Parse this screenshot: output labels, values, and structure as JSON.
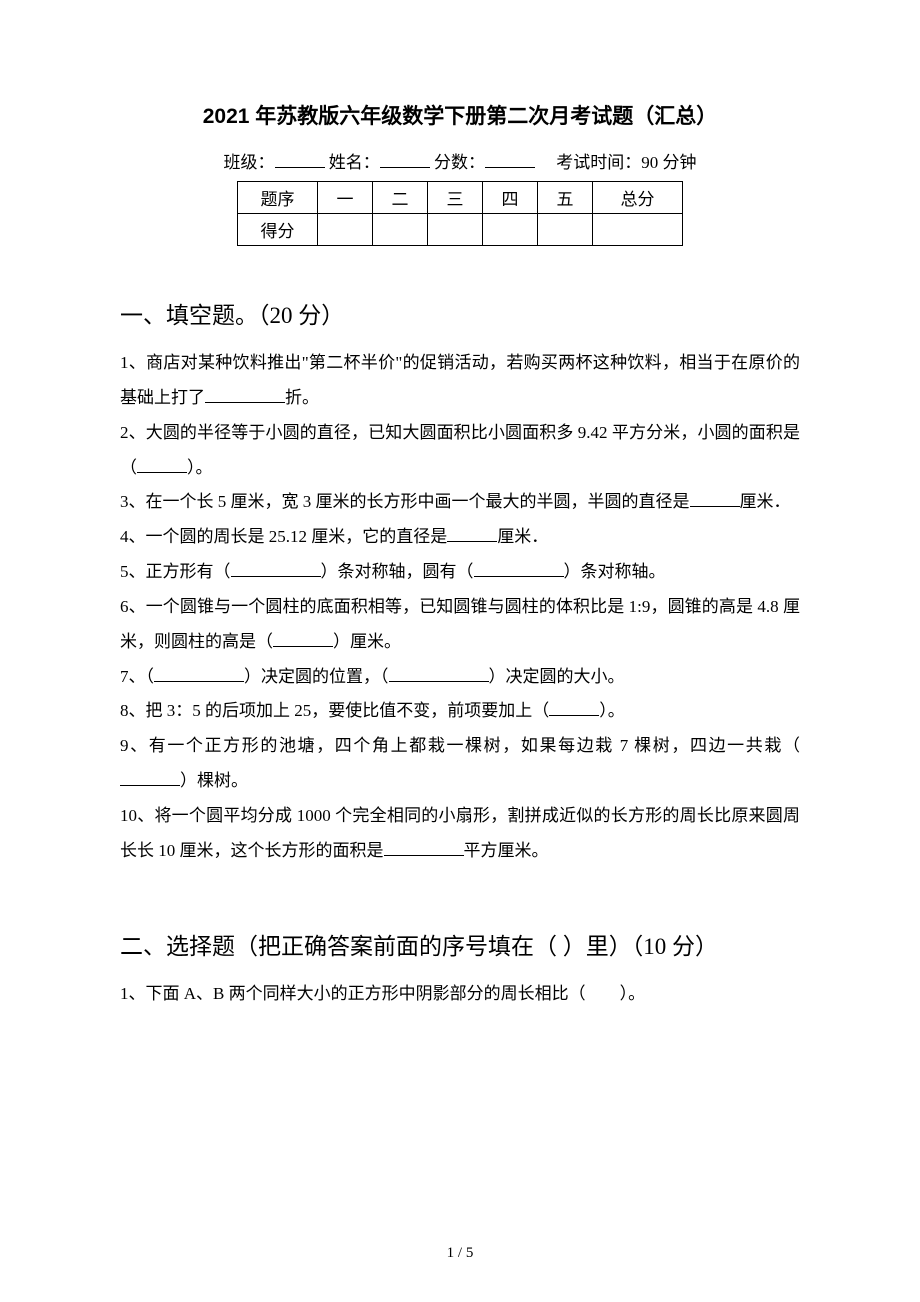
{
  "title": "2021 年苏教版六年级数学下册第二次月考试题（汇总）",
  "meta": {
    "class_label": "班级：",
    "name_label": "姓名：",
    "score_label": "分数：",
    "time_label": "考试时间：90 分钟"
  },
  "score_table": {
    "row_header_label": "题序",
    "score_label": "得分",
    "columns": [
      "一",
      "二",
      "三",
      "四",
      "五",
      "总分"
    ]
  },
  "section1": {
    "heading": "一、填空题。（20 分）",
    "q1_a": "1、商店对某种饮料推出\"第二杯半价\"的促销活动，若购买两杯这种饮料，相当于在原价的基础上打了",
    "q1_b": "折。",
    "q2_a": "2、大圆的半径等于小圆的直径，已知大圆面积比小圆面积多 9.42 平方分米，小圆的面积是（",
    "q2_b": "）。",
    "q3_a": "3、在一个长 5 厘米，宽 3 厘米的长方形中画一个最大的半圆，半圆的直径是",
    "q3_b": "厘米．",
    "q4_a": "4、一个圆的周长是 25.12 厘米，它的直径是",
    "q4_b": "厘米．",
    "q5_a": "5、正方形有（",
    "q5_b": "）条对称轴，圆有（",
    "q5_c": "）条对称轴。",
    "q6_a": "6、一个圆锥与一个圆柱的底面积相等，已知圆锥与圆柱的体积比是 1:9，圆锥的高是 4.8 厘米，则圆柱的高是（",
    "q6_b": "）厘米。",
    "q7_a": "7、（",
    "q7_b": "）决定圆的位置，（",
    "q7_c": "）决定圆的大小。",
    "q8_a": "8、把 3：5 的后项加上 25，要使比值不变，前项要加上（",
    "q8_b": "）。",
    "q9_a": "9、有一个正方形的池塘，四个角上都栽一棵树，如果每边栽 7 棵树，四边一共栽（",
    "q9_b": "）棵树。",
    "q10_a": "10、将一个圆平均分成 1000 个完全相同的小扇形，割拼成近似的长方形的周长比原来圆周长长 10 厘米，这个长方形的面积是",
    "q10_b": "平方厘米。"
  },
  "section2": {
    "heading": "二、选择题（把正确答案前面的序号填在（ ）里）（10 分）",
    "q1": "1、下面 A、B 两个同样大小的正方形中阴影部分的周长相比（　　）。"
  },
  "page_number": "1 / 5"
}
